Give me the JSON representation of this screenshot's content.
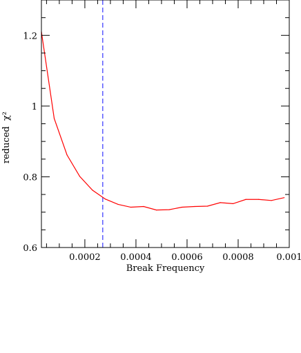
{
  "chart_data": {
    "type": "line",
    "title": "",
    "xlabel": "Break Frequency",
    "ylabel_text": "reduced",
    "ylabel_symbol": "χ²",
    "xlim": [
      3e-05,
      0.001
    ],
    "ylim": [
      0.6,
      1.3
    ],
    "x_ticks": [
      {
        "value": 0.0002,
        "label": "0.0002"
      },
      {
        "value": 0.0004,
        "label": "0.0004"
      },
      {
        "value": 0.0006,
        "label": "0.0006"
      },
      {
        "value": 0.0008,
        "label": "0.0008"
      },
      {
        "value": 0.001,
        "label": "0.001"
      }
    ],
    "x_minor_step": 5e-05,
    "y_ticks": [
      {
        "value": 0.6,
        "label": "0.6"
      },
      {
        "value": 0.8,
        "label": "0.8"
      },
      {
        "value": 1.0,
        "label": "1"
      },
      {
        "value": 1.2,
        "label": "1.2"
      }
    ],
    "y_minor_step": 0.05,
    "grid": false,
    "series": [
      {
        "color": "#ff0000",
        "x": [
          3e-05,
          8e-05,
          0.00013,
          0.00018,
          0.00023,
          0.00028,
          0.00033,
          0.00038,
          0.00043,
          0.00048,
          0.00053,
          0.00058,
          0.00063,
          0.00068,
          0.00073,
          0.00078,
          0.00083,
          0.00088,
          0.00093,
          0.00098
        ],
        "y": [
          1.21,
          0.965,
          0.862,
          0.801,
          0.762,
          0.737,
          0.722,
          0.714,
          0.716,
          0.706,
          0.707,
          0.714,
          0.716,
          0.717,
          0.727,
          0.724,
          0.736,
          0.736,
          0.733,
          0.741
        ]
      }
    ],
    "reference_line": {
      "x": 0.00027,
      "color": "#3333ff",
      "style": "dashed"
    }
  }
}
